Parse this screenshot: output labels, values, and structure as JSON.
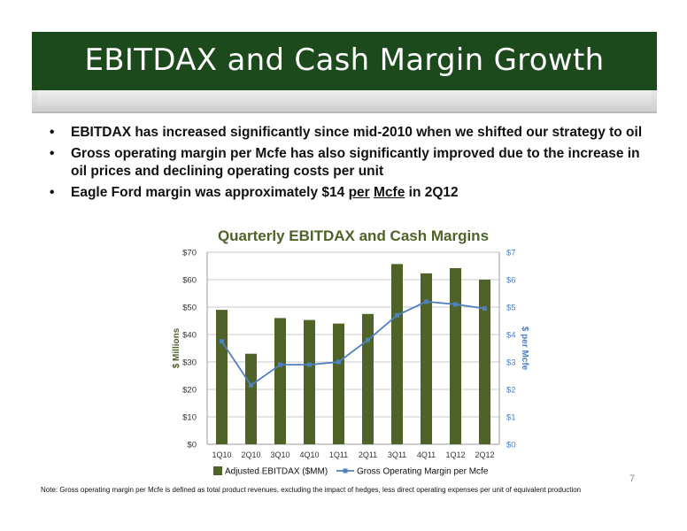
{
  "slide": {
    "title": "EBITDAX and Cash Margin Growth",
    "bullets": {
      "b1": "EBITDAX has increased significantly since mid-2010 when we shifted our strategy to oil",
      "b2": "Gross operating margin per Mcfe has also significantly improved due to the increase in oil prices and declining operating costs per unit",
      "b3_pre": "Eagle Ford margin was approximately $14 ",
      "b3_per": "per",
      "b3_mid": " ",
      "b3_mcfe": "Mcfe",
      "b3_post": " in 2Q12"
    },
    "footnote": "Note: Gross operating margin per Mcfe is defined as total product revenues, excluding the impact of hedges, less direct operating expenses per unit of equivalent production",
    "page_number": "7",
    "colors": {
      "header": "#1c4a1c",
      "bar": "#4f6228",
      "line": "#4f81bd",
      "title_text": "#4f6228"
    }
  },
  "chart_data": {
    "type": "bar",
    "title": "Quarterly EBITDAX and Cash Margins",
    "categories": [
      "1Q10",
      "2Q10",
      "3Q10",
      "4Q10",
      "1Q11",
      "2Q11",
      "3Q11",
      "4Q11",
      "1Q12",
      "2Q12"
    ],
    "series": [
      {
        "name": "Adjusted EBITDAX ($MM)",
        "type": "bar",
        "axis": "left",
        "values": [
          49,
          33,
          46,
          45.3,
          44,
          47.5,
          65.7,
          62.3,
          64.2,
          60
        ]
      },
      {
        "name": "Gross Operating Margin per Mcfe",
        "type": "line",
        "axis": "right",
        "values": [
          3.75,
          2.15,
          2.9,
          2.9,
          3.0,
          3.8,
          4.7,
          5.2,
          5.1,
          4.95
        ]
      }
    ],
    "ylabel": "$ Millions",
    "y2label": "$ per Mcfe",
    "ylim": [
      0,
      70
    ],
    "y2lim": [
      0,
      7
    ],
    "yticks": [
      "$0",
      "$10",
      "$20",
      "$30",
      "$40",
      "$50",
      "$60",
      "$70"
    ],
    "y2ticks": [
      "$0",
      "$1",
      "$2",
      "$3",
      "$4",
      "$5",
      "$6",
      "$7"
    ],
    "grid": true,
    "legend": "bottom"
  }
}
